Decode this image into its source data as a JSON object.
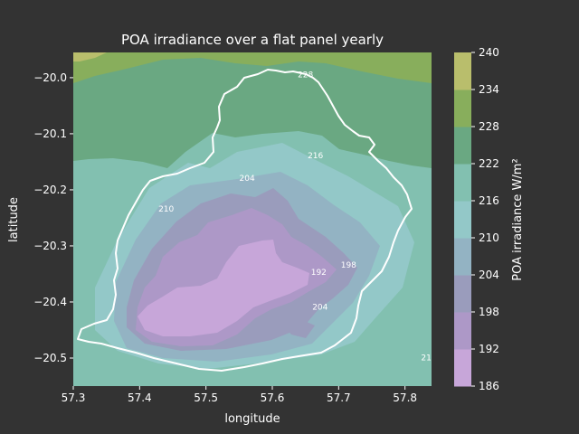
{
  "chart_data": {
    "type": "contour",
    "title": "POA irradiance over a flat panel yearly",
    "xlabel": "longitude",
    "ylabel": "latitude",
    "xlim": [
      57.3,
      57.84
    ],
    "ylim": [
      -20.55,
      -19.955
    ],
    "x_ticks": [
      {
        "value": 57.3,
        "label": "57.3"
      },
      {
        "value": 57.4,
        "label": "57.4"
      },
      {
        "value": 57.5,
        "label": "57.5"
      },
      {
        "value": 57.6,
        "label": "57.6"
      },
      {
        "value": 57.7,
        "label": "57.7"
      },
      {
        "value": 57.8,
        "label": "57.8"
      }
    ],
    "y_ticks": [
      {
        "value": -20.0,
        "label": "−20.0"
      },
      {
        "value": -20.1,
        "label": "−20.1"
      },
      {
        "value": -20.2,
        "label": "−20.2"
      },
      {
        "value": -20.3,
        "label": "−20.3"
      },
      {
        "value": -20.4,
        "label": "−20.4"
      },
      {
        "value": -20.5,
        "label": "−20.5"
      }
    ],
    "colorbar": {
      "label": "POA irradiance W/m²",
      "levels": [
        186,
        192,
        198,
        204,
        210,
        216,
        222,
        228,
        234,
        240
      ],
      "level_labels": [
        "186",
        "192",
        "198",
        "204",
        "210",
        "216",
        "222",
        "228",
        "234",
        "240"
      ],
      "colors": [
        "#c7a6d9",
        "#ad98c7",
        "#9a9cbc",
        "#93b3c3",
        "#93c8c8",
        "#82c0b0",
        "#6aa882",
        "#88ae5c",
        "#b9be6c"
      ]
    },
    "contour_labels": [
      {
        "text": "228",
        "x": 57.65,
        "y": -19.995
      },
      {
        "text": "216",
        "x": 57.665,
        "y": -20.14
      },
      {
        "text": "204",
        "x": 57.562,
        "y": -20.18
      },
      {
        "text": "210",
        "x": 57.44,
        "y": -20.235
      },
      {
        "text": "198",
        "x": 57.715,
        "y": -20.335
      },
      {
        "text": "192",
        "x": 57.67,
        "y": -20.348
      },
      {
        "text": "204",
        "x": 57.672,
        "y": -20.41
      },
      {
        "text": "21",
        "x": 57.832,
        "y": -20.5
      }
    ],
    "grid": false,
    "background": "#333333"
  }
}
